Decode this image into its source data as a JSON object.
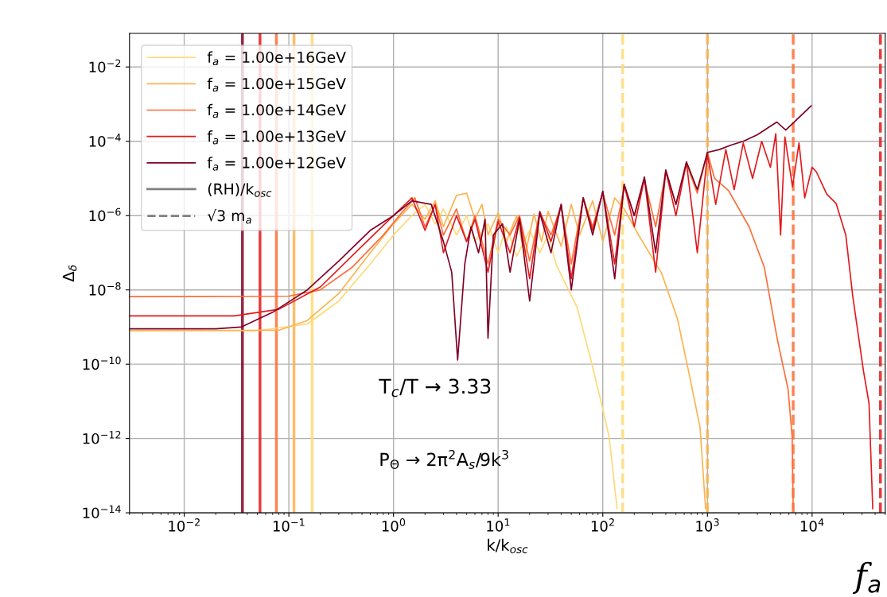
{
  "chart_data": {
    "type": "line",
    "xlabel": "k/k$_{osc}$",
    "ylabel": "Δ$_{δ}$",
    "log": "xy",
    "grid": true,
    "legend": "top left",
    "line_style": "solid",
    "marker": "none",
    "xlim": [
      0.003,
      50000
    ],
    "ylim": [
      1e-14,
      0.08
    ],
    "xticks": [
      {
        "value": 0.01,
        "label": "10$^{−2}$"
      },
      {
        "value": 0.1,
        "label": "10$^{−1}$"
      },
      {
        "value": 1,
        "label": "10$^{0}$"
      },
      {
        "value": 10,
        "label": "10$^{1}$"
      },
      {
        "value": 100,
        "label": "10$^{2}$"
      },
      {
        "value": 1000,
        "label": "10$^{3}$"
      },
      {
        "value": 10000,
        "label": "10$^{4}$"
      }
    ],
    "yticks": [
      {
        "value": 1e-14,
        "label": "10$^{−14}$"
      },
      {
        "value": 1e-12,
        "label": "10$^{−12}$"
      },
      {
        "value": 1e-10,
        "label": "10$^{−10}$"
      },
      {
        "value": 1e-08,
        "label": "10$^{−8}$"
      },
      {
        "value": 1e-06,
        "label": "10$^{−6}$"
      },
      {
        "value": 0.0001,
        "label": "10$^{−4}$"
      },
      {
        "value": 0.01,
        "label": "10$^{−2}$"
      }
    ],
    "series": [
      {
        "name": "f$_{a}$ = 1.00e+16GeV",
        "color": "#fed976",
        "x": [
          0.003,
          0.05,
          0.15,
          0.3,
          0.6,
          1,
          1.5,
          2,
          2.5,
          3,
          4,
          5,
          6,
          8,
          10,
          12,
          15,
          20,
          25,
          30,
          36,
          57,
          76,
          97,
          115,
          137
        ],
        "values": [
          8e-10,
          8e-10,
          1.2e-09,
          5e-09,
          5e-08,
          3e-07,
          1e-06,
          2e-06,
          6e-07,
          1.5e-06,
          3e-07,
          1e-06,
          2e-07,
          6e-07,
          1e-07,
          5e-07,
          8e-08,
          4e-07,
          1e-07,
          3e-07,
          4.7e-08,
          3.3e-09,
          1.5e-10,
          8.9e-12,
          1.1e-12,
          1.3e-14
        ]
      },
      {
        "name": "f$_{a}$ = 1.00e+15GeV",
        "color": "#feb24c",
        "x": [
          0.003,
          0.08,
          0.15,
          0.3,
          0.6,
          1,
          1.5,
          2,
          2.5,
          3,
          4,
          5,
          6,
          7,
          8,
          10,
          12,
          15,
          18,
          22,
          26,
          30,
          40,
          50,
          60,
          80,
          100,
          130,
          160,
          230,
          363,
          516,
          660,
          850,
          960
        ],
        "values": [
          8e-10,
          8.2e-10,
          1.5e-09,
          8e-09,
          1e-07,
          6e-07,
          2e-06,
          8e-07,
          2.5e-06,
          5e-07,
          3.5e-06,
          4e-06,
          8e-07,
          2e-06,
          3e-07,
          1.2e-06,
          2e-07,
          1e-06,
          8e-08,
          1.1e-06,
          2e-07,
          1.3e-06,
          1.5e-07,
          2e-06,
          3e-07,
          2.5e-06,
          2e-07,
          3e-06,
          1.5e-06,
          2.4e-07,
          2.9e-08,
          1.7e-09,
          6.5e-11,
          2e-12,
          1.3e-14
        ]
      },
      {
        "name": "f$_{a}$ = 1.00e+14GeV",
        "color": "#fd6d37",
        "x": [
          0.003,
          0.1,
          0.2,
          0.4,
          0.8,
          1.2,
          1.6,
          2,
          2.5,
          3,
          4,
          5,
          6,
          8,
          10,
          13,
          16,
          20,
          25,
          32,
          40,
          50,
          65,
          80,
          100,
          130,
          160,
          200,
          250,
          320,
          400,
          500,
          630,
          800,
          1000,
          1170,
          1600,
          2500,
          3500,
          4660,
          5900,
          6450,
          6600
        ],
        "values": [
          6.6e-09,
          6.8e-09,
          1e-08,
          4e-08,
          3e-07,
          1.2e-06,
          3e-06,
          5e-07,
          2e-06,
          3e-07,
          1.5e-06,
          2e-07,
          1e-06,
          5e-08,
          8e-07,
          3e-07,
          1e-06,
          6e-08,
          1.2e-06,
          3e-07,
          1.8e-06,
          5e-08,
          3e-06,
          5e-07,
          4e-06,
          3e-07,
          6e-06,
          1e-06,
          9e-06,
          5e-07,
          1.5e-05,
          2e-06,
          2.5e-05,
          4e-06,
          5e-05,
          1e-05,
          4.6e-06,
          5e-07,
          4e-08,
          4.6e-10,
          2.1e-11,
          1.1e-12,
          1.3e-14
        ]
      },
      {
        "name": "f$_{a}$ = 1.00e+13GeV",
        "color": "#e31a1c",
        "x": [
          0.003,
          0.03,
          0.08,
          0.2,
          0.5,
          1,
          1.5,
          2,
          2.5,
          3,
          4,
          5,
          6,
          8,
          10,
          13,
          16,
          20,
          25,
          32,
          40,
          50,
          65,
          80,
          100,
          130,
          160,
          200,
          250,
          320,
          400,
          500,
          630,
          800,
          1000,
          1200,
          1500,
          1800,
          2200,
          2700,
          3300,
          4000,
          4500,
          5000,
          5500,
          6500,
          7500,
          8500,
          10000,
          11000,
          13800,
          17000,
          21000,
          24500,
          31000,
          35000,
          38000
        ],
        "values": [
          2e-09,
          2e-09,
          3e-09,
          1.2e-08,
          1.5e-07,
          1e-06,
          3e-06,
          4e-07,
          2e-06,
          1e-07,
          1e-06,
          2e-07,
          8e-07,
          3e-08,
          7e-07,
          1e-07,
          9e-07,
          2e-08,
          1.3e-06,
          2e-07,
          2e-06,
          2e-08,
          3e-06,
          4e-07,
          4.5e-06,
          5e-08,
          7e-06,
          5e-07,
          1e-05,
          3e-08,
          1.6e-05,
          1e-06,
          2.7e-05,
          1e-07,
          4.5e-05,
          2e-06,
          6e-05,
          5e-06,
          9e-05,
          1e-05,
          0.0001,
          2e-05,
          0.00016,
          3e-07,
          0.00013,
          6e-06,
          9e-05,
          3e-06,
          2e-05,
          1.5e-05,
          3.8e-06,
          2.1e-06,
          3e-07,
          6.6e-09,
          6.5e-11,
          8.9e-12,
          1.3e-14
        ]
      },
      {
        "name": "f$_{a}$ = 1.00e+12GeV",
        "color": "#800026",
        "x": [
          0.003,
          0.02,
          0.035,
          0.07,
          0.15,
          0.3,
          0.6,
          1,
          1.5,
          2.3,
          3,
          3.6,
          4.1,
          4.8,
          5.5,
          6.5,
          7.5,
          8,
          9,
          11,
          13,
          16,
          20,
          25,
          32,
          40,
          50,
          65,
          80,
          100,
          130,
          160,
          200,
          250,
          320,
          400,
          500,
          630,
          800,
          1000,
          1300,
          1700,
          2200,
          3000,
          4600,
          5600,
          9800
        ],
        "values": [
          9e-10,
          9e-10,
          1e-09,
          2.5e-09,
          1e-08,
          6e-08,
          4e-07,
          1e-06,
          2.5e-06,
          2e-06,
          2e-07,
          3e-08,
          1.3e-10,
          5e-08,
          5e-07,
          1e-07,
          8e-07,
          5e-10,
          3e-07,
          6e-07,
          3e-08,
          8e-07,
          5e-09,
          1.2e-06,
          1e-07,
          2e-06,
          1e-08,
          3e-06,
          3e-07,
          4.5e-06,
          2e-08,
          7e-06,
          1e-06,
          1.1e-05,
          1e-07,
          1.7e-05,
          2e-06,
          2.8e-05,
          5e-06,
          5e-05,
          6e-05,
          8e-05,
          0.0001,
          0.00015,
          0.00033,
          0.0002,
          0.0009
        ]
      },
      {
        "name": "(RH)/k$_{osc}$",
        "color": "#808080",
        "line_style": "solid"
      },
      {
        "name": "√3 m$_{a}$",
        "color": "#808080",
        "line_style": "dashed"
      }
    ],
    "ref_lines": [
      {
        "axis": "x",
        "value": 0.036,
        "color": "#800026",
        "line_style": "solid"
      },
      {
        "axis": "x",
        "value": 0.053,
        "color": "#e31a1c",
        "line_style": "solid"
      },
      {
        "axis": "x",
        "value": 0.076,
        "color": "#fd6d37",
        "line_style": "solid"
      },
      {
        "axis": "x",
        "value": 0.112,
        "color": "#feb24c",
        "line_style": "solid"
      },
      {
        "axis": "x",
        "value": 0.167,
        "color": "#fed976",
        "line_style": "solid"
      },
      {
        "axis": "x",
        "value": 155,
        "color": "#fed976",
        "line_style": "dashed"
      },
      {
        "axis": "x",
        "value": 1000,
        "color": "#feb24c",
        "line_style": "dashed"
      },
      {
        "axis": "x",
        "value": 6600,
        "color": "#fd6d37",
        "line_style": "dashed"
      },
      {
        "axis": "x",
        "value": 45000,
        "color": "#e31a1c",
        "line_style": "dashed"
      }
    ],
    "annotations": [
      "T$_{c}$/T → 3.33",
      "P$_{Θ}$ → 2π$^{2}$A$_{s}$/9k$^{3}$",
      "f$_{a}$"
    ]
  }
}
